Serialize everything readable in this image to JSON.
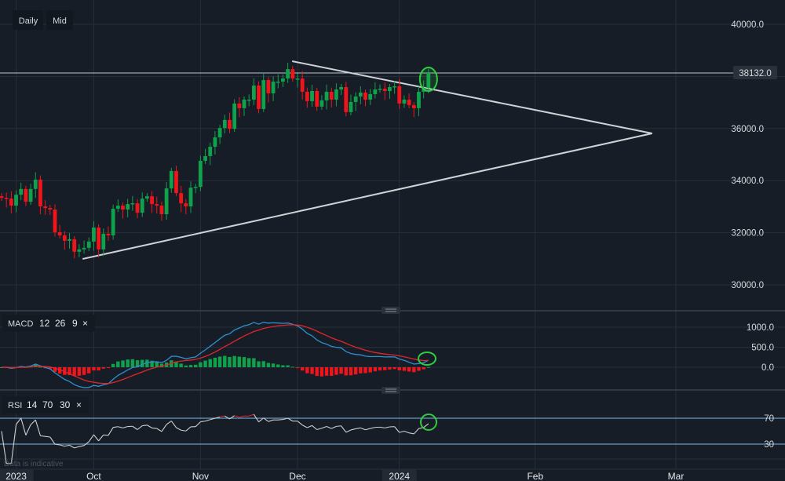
{
  "toolbar": {
    "interval": "Daily",
    "price_type": "Mid"
  },
  "current_price_label": "38132.0",
  "footer_note": "Data is indicative",
  "macd": {
    "name": "MACD",
    "fast": "12",
    "slow": "26",
    "signal": "9",
    "close": "×",
    "ticks": [
      "1000.0",
      "500.0",
      "0.0"
    ],
    "tick_values": [
      1000,
      500,
      0
    ],
    "colors": {
      "macd": "#2f8fd0",
      "signal": "#e0262b",
      "hist_pos": "#0fa14c",
      "hist_neg": "#f0141b"
    }
  },
  "rsi": {
    "name": "RSI",
    "period": "14",
    "upper": "70",
    "lower": "30",
    "close": "×",
    "ticks": [
      "70",
      "30"
    ],
    "tick_values": [
      70,
      30
    ],
    "colors": {
      "line": "#cfcfcf",
      "overbought": "#d0262b",
      "bands": "#6a9cc6"
    }
  },
  "chart_data": {
    "type": "candlestick",
    "title": "",
    "y_ticks": [
      "40000.0",
      "36000.0",
      "34000.0",
      "32000.0",
      "30000.0"
    ],
    "y_tick_values": [
      40000,
      36000,
      34000,
      32000,
      30000
    ],
    "ylim": [
      30000,
      40000
    ],
    "x_labels": [
      {
        "label": "2023",
        "index": 3,
        "boxed": true
      },
      {
        "label": "Oct",
        "index": 19
      },
      {
        "label": "Nov",
        "index": 41
      },
      {
        "label": "Dec",
        "index": 61
      },
      {
        "label": "2024",
        "index": 82,
        "boxed": true
      },
      {
        "label": "Feb",
        "index": 110
      },
      {
        "label": "Mar",
        "index": 139
      }
    ],
    "closes": [
      33340,
      33310,
      33040,
      33460,
      33680,
      33190,
      33680,
      34040,
      33010,
      32950,
      32890,
      32020,
      31900,
      31690,
      31750,
      31270,
      31360,
      31420,
      31660,
      32200,
      31360,
      31960,
      31900,
      32920,
      33040,
      32890,
      33100,
      33130,
      32770,
      33310,
      33400,
      33100,
      33040,
      32710,
      33700,
      34370,
      33520,
      33130,
      33010,
      33730,
      33760,
      34760,
      34940,
      35300,
      35660,
      36020,
      36330,
      35990,
      36960,
      36780,
      37110,
      37110,
      37650,
      36750,
      37860,
      37350,
      37800,
      37800,
      37920,
      38280,
      37920,
      37920,
      37410,
      37050,
      37440,
      36840,
      37080,
      37410,
      37110,
      37500,
      37590,
      36630,
      37020,
      37230,
      37380,
      37110,
      37320,
      37500,
      37530,
      37440,
      37590,
      37620,
      36960,
      37110,
      36900,
      36780,
      37410,
      37560,
      38132
    ],
    "horizontal_level": 38132,
    "trendlines": [
      {
        "name": "upper-resistance",
        "from": [
          59.9,
          38584
        ],
        "to": [
          134.1,
          35813
        ]
      },
      {
        "name": "lower-support",
        "from": [
          16.7,
          30994
        ],
        "to": [
          134.1,
          35813
        ]
      }
    ],
    "highlight_index": 88,
    "colors": {
      "up": "#0fa14c",
      "down": "#f0141b",
      "lines": "#cfd2d6",
      "highlight": "#2ecc40"
    }
  }
}
